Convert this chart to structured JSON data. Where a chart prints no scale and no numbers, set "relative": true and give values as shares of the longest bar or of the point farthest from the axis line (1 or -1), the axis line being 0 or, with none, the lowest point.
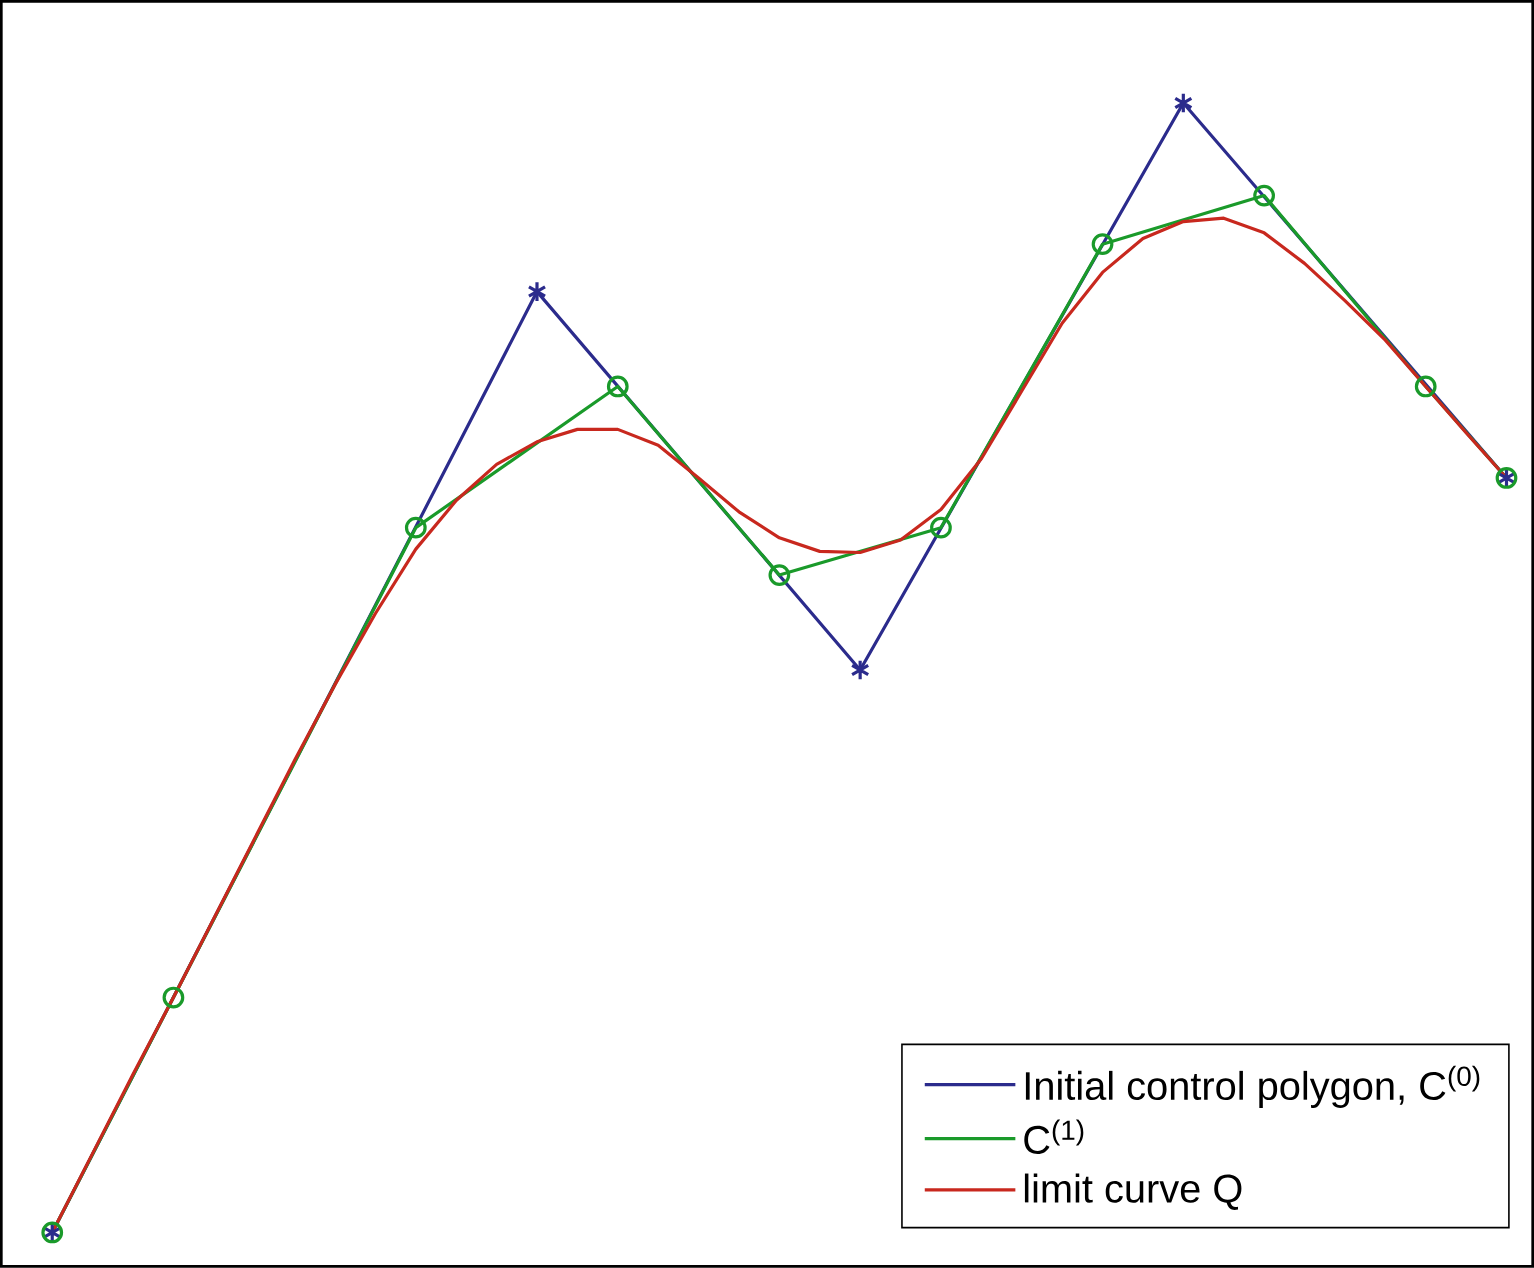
{
  "chart_data": {
    "type": "line",
    "relative": true,
    "tick_labels": false,
    "legend": "bottom right",
    "categories": [
      null,
      null,
      null,
      null,
      null,
      null,
      null,
      null,
      null,
      null,
      null,
      null,
      null,
      null,
      null,
      null,
      null,
      null,
      null,
      null,
      null,
      null,
      null,
      null,
      null,
      null,
      null,
      null,
      null,
      null,
      null,
      null,
      null,
      null,
      null,
      null,
      null
    ],
    "series": [
      {
        "name": "Initial control polygon, C$^{(0)}$",
        "color": "#2b2b8c",
        "marker": "cross",
        "values": [
          0,
          null,
          null,
          null,
          null,
          null,
          null,
          null,
          null,
          null,
          null,
          null,
          0.833,
          null,
          null,
          null,
          null,
          null,
          null,
          null,
          0.498,
          null,
          null,
          null,
          null,
          null,
          null,
          null,
          1.0,
          null,
          null,
          null,
          null,
          null,
          null,
          null,
          0.668
        ]
      },
      {
        "name": "C$^{(1)}$",
        "color": "#1a9a2a",
        "marker": "circle",
        "values": [
          0,
          null,
          null,
          0.208,
          null,
          null,
          null,
          null,
          null,
          0.624,
          null,
          null,
          null,
          null,
          0.749,
          null,
          null,
          null,
          0.582,
          null,
          null,
          null,
          0.624,
          null,
          null,
          null,
          0.875,
          null,
          null,
          null,
          0.918,
          null,
          null,
          null,
          0.749,
          null,
          0.668
        ]
      },
      {
        "name": "limit curve Q",
        "color": "#c8281e",
        "marker": "none",
        "values": [
          0,
          0.07,
          0.14,
          0.208,
          0.278,
          0.348,
          0.418,
          0.485,
          0.548,
          0.605,
          0.648,
          0.68,
          0.7,
          0.711,
          0.711,
          0.697,
          0.668,
          0.638,
          0.615,
          0.603,
          0.602,
          0.613,
          0.64,
          0.685,
          0.745,
          0.805,
          0.85,
          0.88,
          0.895,
          0.898,
          0.885,
          0.858,
          0.825,
          0.79,
          0.749,
          0.708,
          0.668
        ]
      }
    ]
  }
}
